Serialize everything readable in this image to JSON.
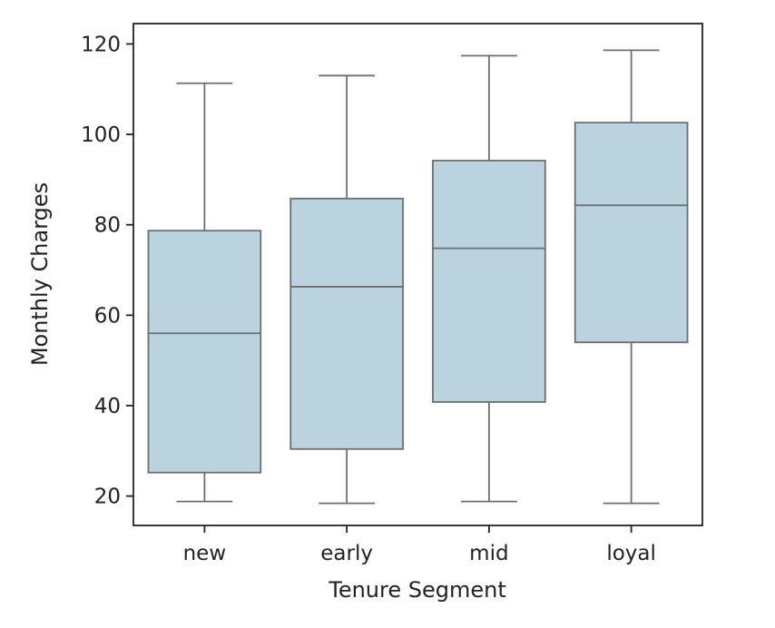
{
  "chart_data": {
    "type": "box",
    "xlabel": "Tenure Segment",
    "ylabel": "Monthly Charges",
    "ylim": [
      13.5,
      124.5
    ],
    "yticks": [
      "20",
      "40",
      "60",
      "80",
      "100",
      "120"
    ],
    "categories": [
      "new",
      "early",
      "mid",
      "loyal"
    ],
    "boxes": [
      {
        "category": "new",
        "whisker_low": 18.8,
        "q1": 25.2,
        "median": 56.0,
        "q3": 78.7,
        "whisker_high": 111.3
      },
      {
        "category": "early",
        "whisker_low": 18.4,
        "q1": 30.4,
        "median": 66.3,
        "q3": 85.8,
        "whisker_high": 113.0
      },
      {
        "category": "mid",
        "whisker_low": 18.8,
        "q1": 40.8,
        "median": 74.8,
        "q3": 94.2,
        "whisker_high": 117.4
      },
      {
        "category": "loyal",
        "whisker_low": 18.4,
        "q1": 54.0,
        "median": 84.3,
        "q3": 102.6,
        "whisker_high": 118.6
      }
    ],
    "box_color": "#bad4df",
    "line_color": "#6e6e6e",
    "grid": false,
    "legend": "none"
  }
}
